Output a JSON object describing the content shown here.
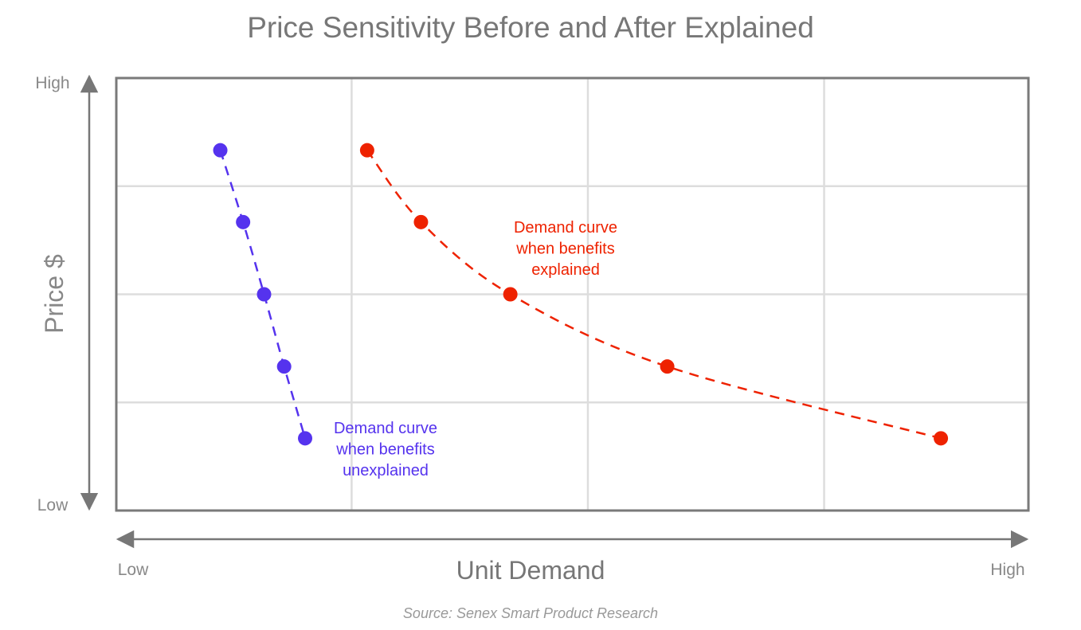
{
  "chart_data": {
    "type": "scatter",
    "title": "Price Sensitivity Before and After Explained",
    "xlabel": "Unit Demand",
    "ylabel": "Price $",
    "x_tick_low": "Low",
    "x_tick_high": "High",
    "y_tick_low": "Low",
    "y_tick_high": "High",
    "xlim": [
      0,
      100
    ],
    "ylim": [
      0,
      100
    ],
    "grid": true,
    "x_gridlines": [
      25.8,
      51.7,
      77.6
    ],
    "y_gridlines": [
      25,
      50,
      75
    ],
    "source": "Source: Senex Smart Product Research",
    "series": [
      {
        "name": "unexplained",
        "color": "#5533ee",
        "line_style": "dashed",
        "annotation": [
          "Demand curve",
          "when benefits",
          "unexplained"
        ],
        "x": [
          11.4,
          13.9,
          16.2,
          18.4,
          20.7
        ],
        "y": [
          83.3,
          66.7,
          50.0,
          33.3,
          16.7
        ]
      },
      {
        "name": "explained",
        "color": "#ee2200",
        "line_style": "dashed",
        "annotation": [
          "Demand curve",
          "when benefits",
          "explained"
        ],
        "x": [
          27.5,
          33.4,
          43.2,
          60.4,
          90.4
        ],
        "y": [
          83.3,
          66.7,
          50.0,
          33.3,
          16.7
        ]
      }
    ]
  }
}
